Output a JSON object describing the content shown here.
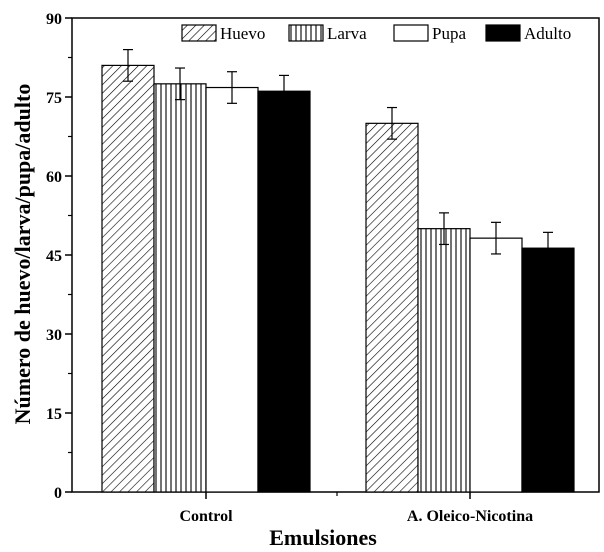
{
  "chart_data": {
    "type": "bar",
    "xlabel": "Emulsiones",
    "ylabel": "Número de huevo/larva/pupa/adulto",
    "categories": [
      "Control",
      "A. Oleico-Nicotina"
    ],
    "ylim": [
      0,
      90
    ],
    "yticks": [
      0,
      15,
      30,
      45,
      60,
      75,
      90
    ],
    "grid": false,
    "legend_position": "top-right",
    "series": [
      {
        "name": "Huevo",
        "pattern": "diagonal-hatch",
        "color": "#000000",
        "values": [
          81.0,
          70.0
        ],
        "errors": [
          3.0,
          3.0
        ]
      },
      {
        "name": "Larva",
        "pattern": "vertical-hatch",
        "color": "#000000",
        "values": [
          77.5,
          50.0
        ],
        "errors": [
          3.0,
          3.0
        ]
      },
      {
        "name": "Pupa",
        "pattern": "none",
        "color": "#ffffff",
        "values": [
          76.8,
          48.2
        ],
        "errors": [
          3.0,
          3.0
        ]
      },
      {
        "name": "Adulto",
        "pattern": "solid",
        "color": "#000000",
        "values": [
          76.1,
          46.3
        ],
        "errors": [
          3.0,
          3.0
        ]
      }
    ]
  }
}
